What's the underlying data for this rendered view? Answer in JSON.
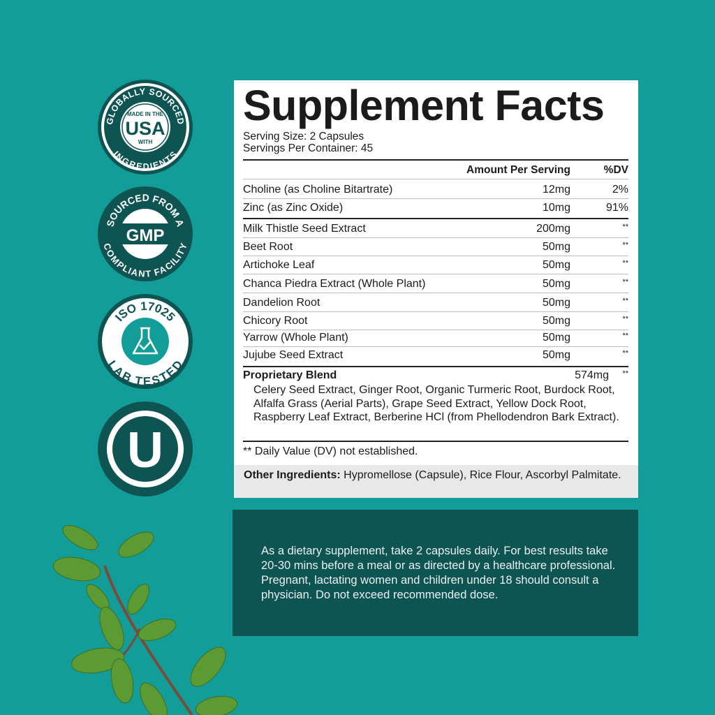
{
  "badges": [
    {
      "top": "GLOBALLY SOURCED",
      "center_small_top": "MADE IN THE",
      "center": "USA",
      "center_small_bottom": "WITH",
      "bottom": "INGREDIENTS"
    },
    {
      "top": "SOURCED FROM A",
      "center": "GMP",
      "bottom": "COMPLIANT FACILITY"
    },
    {
      "top": "ISO 17025",
      "icon": "flask-check-icon",
      "bottom": "LAB TESTED"
    },
    {
      "center": "U"
    }
  ],
  "colors": {
    "background": "#139d98",
    "dark": "#0e5452"
  },
  "facts": {
    "title": "Supplement Facts",
    "serving_size": "Serving Size: 2 Capsules",
    "servings_per_container": "Servings Per Container: 45",
    "header_amount": "Amount Per Serving",
    "header_dv": "%DV",
    "rows": [
      {
        "name": "Choline (as Choline Bitartrate)",
        "amount": "12mg",
        "dv": "2%"
      },
      {
        "name": "Zinc (as Zinc Oxide)",
        "amount": "10mg",
        "dv": "91%"
      },
      {
        "name": "Milk Thistle Seed Extract",
        "amount": "200mg",
        "dv": "**"
      },
      {
        "name": "Beet Root",
        "amount": "50mg",
        "dv": "**"
      },
      {
        "name": "Artichoke Leaf",
        "amount": "50mg",
        "dv": "**"
      },
      {
        "name": "Chanca Piedra Extract (Whole Plant)",
        "amount": "50mg",
        "dv": "**"
      },
      {
        "name": "Dandelion Root",
        "amount": "50mg",
        "dv": "**"
      },
      {
        "name": "Chicory Root",
        "amount": "50mg",
        "dv": "**"
      },
      {
        "name": "Yarrow (Whole Plant)",
        "amount": "50mg",
        "dv": "**"
      },
      {
        "name": "Jujube Seed Extract",
        "amount": "50mg",
        "dv": "**"
      }
    ],
    "blend": {
      "name": "Proprietary Blend",
      "amount": "574mg",
      "dv": "**",
      "ingredients": "Celery Seed Extract, Ginger Root, Organic Turmeric Root, Burdock Root, Alfalfa Grass (Aerial Parts), Grape Seed Extract, Yellow Dock Root, Raspberry Leaf Extract, Berberine HCl (from Phellodendron Bark Extract)."
    },
    "footnote": "** Daily Value (DV) not established.",
    "other_label": "Other Ingredients:",
    "other_text": " Hypromellose (Capsule), Rice Flour, Ascorbyl Palmitate."
  },
  "directions": "As a dietary supplement, take 2 capsules daily. For best results take 20-30 mins before a meal or as directed by a healthcare professional. Pregnant, lactating women and children under 18 should consult a physician. Do not exceed recommended dose."
}
